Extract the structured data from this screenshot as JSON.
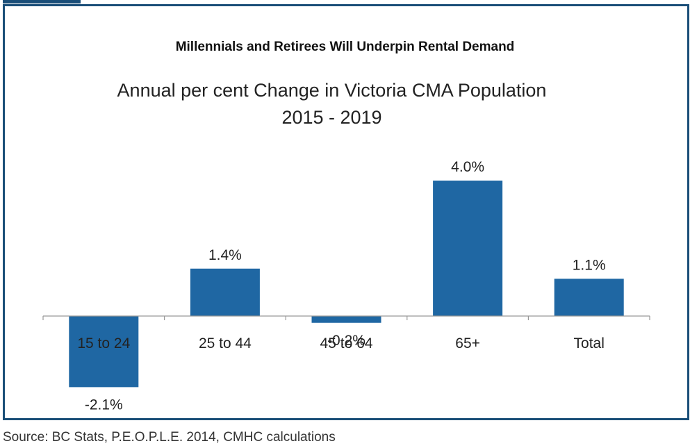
{
  "heading": "Millennials and Retirees Will Underpin Rental Demand",
  "source": "Source: BC Stats, P.E.O.P.L.E. 2014, CMHC calculations",
  "colors": {
    "bar": "#1f67a3",
    "frame": "#1a4e78",
    "axis": "#999999"
  },
  "chart_data": {
    "type": "bar",
    "title": "Annual per cent Change in Victoria CMA Population",
    "subtitle": "2015 - 2019",
    "categories": [
      "15 to 24",
      "25 to 44",
      "45 to 64",
      "65+",
      "Total"
    ],
    "values": [
      -2.1,
      1.4,
      -0.2,
      4.0,
      1.1
    ],
    "data_labels": [
      "-2.1%",
      "1.4%",
      "-0.2%",
      "4.0%",
      "1.1%"
    ],
    "ylim": [
      -2.1,
      4.0
    ],
    "grid": false,
    "legend": "none"
  }
}
